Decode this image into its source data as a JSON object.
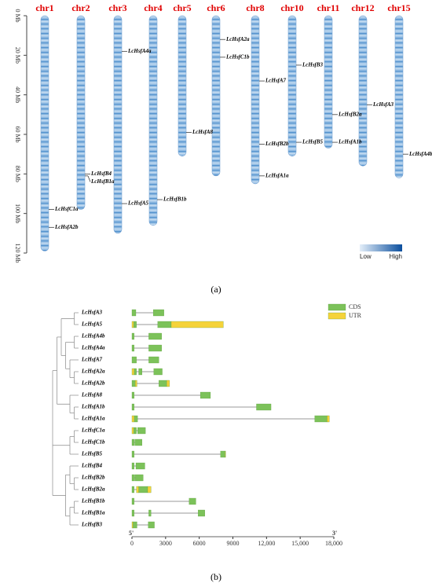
{
  "chart_data": [
    {
      "type": "chromosome",
      "label": "(a)",
      "ylim": [
        0,
        120
      ],
      "yticks": [
        {
          "value": 0,
          "label": "0 Mb"
        },
        {
          "value": 20,
          "label": "20 Mb"
        },
        {
          "value": 40,
          "label": "40 Mb"
        },
        {
          "value": 60,
          "label": "60 Mb"
        },
        {
          "value": 80,
          "label": "80 Mb"
        },
        {
          "value": 100,
          "label": "100 Mb"
        },
        {
          "value": 120,
          "label": "120 Mb"
        }
      ],
      "chromosomes": [
        {
          "name": "chr1",
          "length": 119
        },
        {
          "name": "chr2",
          "length": 98
        },
        {
          "name": "chr3",
          "length": 110
        },
        {
          "name": "chr4",
          "length": 106
        },
        {
          "name": "chr5",
          "length": 71
        },
        {
          "name": "chr6",
          "length": 81
        },
        {
          "name": "chr8",
          "length": 85
        },
        {
          "name": "chr10",
          "length": 71
        },
        {
          "name": "chr11",
          "length": 67
        },
        {
          "name": "chr12",
          "length": 76
        },
        {
          "name": "chr15",
          "length": 82
        }
      ],
      "genes": [
        {
          "name": "LcHsfC1a",
          "chromosome": "chr1",
          "position": 98
        },
        {
          "name": "LcHsfA2b",
          "chromosome": "chr1",
          "position": 107
        },
        {
          "name": "LcHsfB4",
          "chromosome": "chr2",
          "position": 80
        },
        {
          "name": "LcHsfB1a",
          "chromosome": "chr2",
          "position": 81
        },
        {
          "name": "LcHsfA4a",
          "chromosome": "chr3",
          "position": 18
        },
        {
          "name": "LcHsfA5",
          "chromosome": "chr3",
          "position": 95
        },
        {
          "name": "LcHsfB1b",
          "chromosome": "chr4",
          "position": 93
        },
        {
          "name": "LcHsfA8",
          "chromosome": "chr5",
          "position": 59
        },
        {
          "name": "LcHsfA2a",
          "chromosome": "chr6",
          "position": 12
        },
        {
          "name": "LcHsfC1b",
          "chromosome": "chr6",
          "position": 21
        },
        {
          "name": "LcHsfA7",
          "chromosome": "chr8",
          "position": 33
        },
        {
          "name": "LcHsfB2b",
          "chromosome": "chr8",
          "position": 65
        },
        {
          "name": "LcHsfA1a",
          "chromosome": "chr8",
          "position": 81
        },
        {
          "name": "LcHsfB3",
          "chromosome": "chr10",
          "position": 25
        },
        {
          "name": "LcHsfB5",
          "chromosome": "chr10",
          "position": 64
        },
        {
          "name": "LcHsfB2a",
          "chromosome": "chr11",
          "position": 50
        },
        {
          "name": "LcHsfA1b",
          "chromosome": "chr11",
          "position": 64
        },
        {
          "name": "LcHsfA3",
          "chromosome": "chr12",
          "position": 45
        },
        {
          "name": "LcHsfA4b",
          "chromosome": "chr15",
          "position": 70
        }
      ],
      "legend_labels": [
        "Low",
        "High"
      ],
      "color_low": "#e3eef9",
      "color_high": "#0b4f9e"
    },
    {
      "type": "gene_structure",
      "label": "(b)",
      "xlim": [
        0,
        18000
      ],
      "xticks": [
        0,
        3000,
        6000,
        9000,
        {
          "value": 12000,
          "label": "12,000"
        },
        {
          "value": 15000,
          "label": "15,000"
        },
        {
          "value": 18000,
          "label": "18,000"
        }
      ],
      "five_prime_label": "5'",
      "three_prime_label": "3'",
      "series": [
        {
          "name": "CDS",
          "color": "#7cc25a"
        },
        {
          "name": "UTR",
          "color": "#f5d33a"
        }
      ],
      "genes": [
        {
          "name": "LcHsfA3",
          "length": 2850,
          "cds": [
            [
              0,
              350
            ],
            [
              1900,
              2850
            ]
          ],
          "utr": []
        },
        {
          "name": "LcHsfA5",
          "length": 8150,
          "cds": [
            [
              150,
              400
            ],
            [
              2300,
              3500
            ]
          ],
          "utr": [
            [
              0,
              150
            ],
            [
              3500,
              8150
            ]
          ]
        },
        {
          "name": "LcHsfA4b",
          "length": 2650,
          "cds": [
            [
              0,
              200
            ],
            [
              1500,
              2650
            ]
          ],
          "utr": []
        },
        {
          "name": "LcHsfA4a",
          "length": 2650,
          "cds": [
            [
              0,
              200
            ],
            [
              1500,
              2650
            ]
          ],
          "utr": []
        },
        {
          "name": "LcHsfA7",
          "length": 2400,
          "cds": [
            [
              0,
              400
            ],
            [
              1500,
              2400
            ]
          ],
          "utr": []
        },
        {
          "name": "LcHsfA2a",
          "length": 2700,
          "cds": [
            [
              200,
              400
            ],
            [
              600,
              900
            ],
            [
              1950,
              2700
            ]
          ],
          "utr": [
            [
              0,
              200
            ]
          ]
        },
        {
          "name": "LcHsfA2b",
          "length": 3350,
          "cds": [
            [
              0,
              300
            ],
            [
              2400,
              3100
            ]
          ],
          "utr": [
            [
              300,
              450
            ],
            [
              3100,
              3350
            ]
          ]
        },
        {
          "name": "LcHsfA8",
          "length": 7000,
          "cds": [
            [
              0,
              200
            ],
            [
              6100,
              7000
            ]
          ],
          "utr": []
        },
        {
          "name": "LcHsfA1b",
          "length": 12400,
          "cds": [
            [
              0,
              200
            ],
            [
              11100,
              12400
            ]
          ],
          "utr": []
        },
        {
          "name": "LcHsfA1a",
          "length": 17600,
          "cds": [
            [
              200,
              500
            ],
            [
              16300,
              17400
            ]
          ],
          "utr": [
            [
              0,
              200
            ],
            [
              17400,
              17600
            ]
          ]
        },
        {
          "name": "LcHsfC1a",
          "length": 1200,
          "cds": [
            [
              150,
              400
            ],
            [
              500,
              1200
            ]
          ],
          "utr": [
            [
              0,
              150
            ]
          ]
        },
        {
          "name": "LcHsfC1b",
          "length": 900,
          "cds": [
            [
              0,
              200
            ],
            [
              250,
              900
            ]
          ],
          "utr": []
        },
        {
          "name": "LcHsfB5",
          "length": 8350,
          "cds": [
            [
              0,
              200
            ],
            [
              7900,
              8300
            ]
          ],
          "utr": [
            [
              8300,
              8350
            ]
          ]
        },
        {
          "name": "LcHsfB4",
          "length": 1150,
          "cds": [
            [
              0,
              200
            ],
            [
              350,
              1150
            ]
          ],
          "utr": []
        },
        {
          "name": "LcHsfB2b",
          "length": 1000,
          "cds": [
            [
              0,
              250
            ],
            [
              300,
              1000
            ]
          ],
          "utr": []
        },
        {
          "name": "LcHsfB2a",
          "length": 1700,
          "cds": [
            [
              0,
              200
            ],
            [
              600,
              1400
            ]
          ],
          "utr": [
            [
              400,
              600
            ],
            [
              1400,
              1700
            ]
          ]
        },
        {
          "name": "LcHsfB1b",
          "length": 5700,
          "cds": [
            [
              0,
              200
            ],
            [
              5100,
              5700
            ]
          ],
          "utr": []
        },
        {
          "name": "LcHsfB1a",
          "length": 6500,
          "cds": [
            [
              0,
              200
            ],
            [
              1500,
              1700
            ],
            [
              5900,
              6500
            ]
          ],
          "utr": []
        },
        {
          "name": "LcHsfB3",
          "length": 2000,
          "cds": [
            [
              100,
              450
            ],
            [
              1450,
              2000
            ]
          ],
          "utr": [
            [
              0,
              100
            ]
          ]
        }
      ]
    }
  ]
}
